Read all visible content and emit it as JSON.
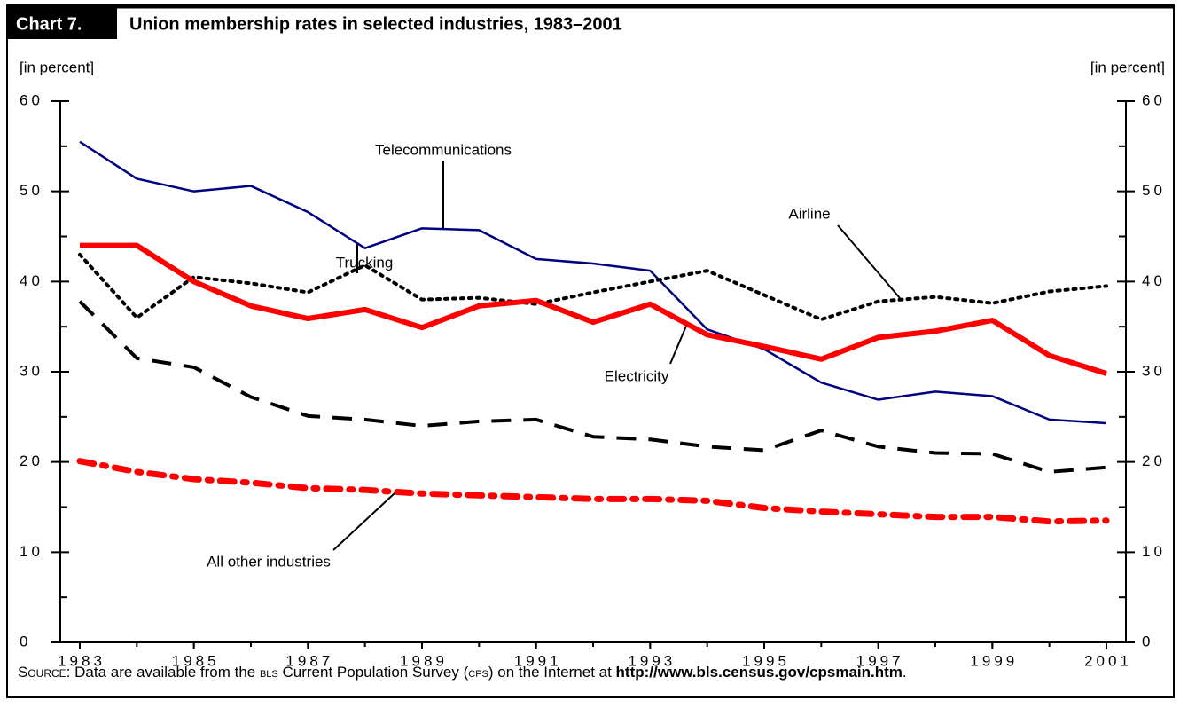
{
  "chart_data": {
    "type": "line",
    "badge": "Chart 7.",
    "title": "Union membership rates in selected industries, 1983–2001",
    "y_label": "[in percent]",
    "y2_label": "[in percent]",
    "x": [
      1983,
      1984,
      1985,
      1986,
      1987,
      1988,
      1989,
      1990,
      1991,
      1992,
      1993,
      1994,
      1995,
      1996,
      1997,
      1998,
      1999,
      2000,
      2001
    ],
    "xlim": [
      1983,
      2001
    ],
    "xticks": [
      1983,
      1985,
      1987,
      1989,
      1991,
      1993,
      1995,
      1997,
      1999,
      2001
    ],
    "ylim": [
      0,
      60
    ],
    "yticks": [
      0,
      10,
      20,
      30,
      40,
      50,
      60
    ],
    "y2lim": [
      0,
      60
    ],
    "y2ticks": [
      0,
      10,
      20,
      30,
      40,
      50,
      60
    ],
    "series": [
      {
        "name": "Telecommunications",
        "color": "#000080",
        "style": "solid",
        "width": 2.5,
        "values": [
          55.5,
          51.4,
          50.0,
          50.6,
          47.7,
          43.7,
          45.9,
          45.7,
          42.5,
          42.0,
          41.2,
          34.7,
          32.5,
          28.8,
          26.9,
          27.8,
          27.3,
          24.7,
          24.3
        ]
      },
      {
        "name": "Airline",
        "color": "#000000",
        "style": "dotted",
        "width": 4,
        "values": [
          43.0,
          36.0,
          40.5,
          39.8,
          38.8,
          41.8,
          38.0,
          38.2,
          37.5,
          38.8,
          40.0,
          41.2,
          38.5,
          35.8,
          37.8,
          38.3,
          37.6,
          38.9,
          39.5
        ]
      },
      {
        "name": "Electricity",
        "color": "#ff0000",
        "style": "solid",
        "width": 6,
        "values": [
          44.0,
          44.0,
          40.0,
          37.3,
          35.9,
          36.9,
          34.9,
          37.3,
          37.9,
          35.5,
          37.5,
          34.1,
          32.8,
          31.4,
          33.8,
          34.5,
          35.7,
          31.8,
          29.8
        ]
      },
      {
        "name": "Trucking",
        "color": "#000000",
        "style": "dashed",
        "width": 4,
        "values": [
          37.8,
          31.5,
          30.5,
          27.2,
          25.1,
          24.7,
          24.0,
          24.5,
          24.7,
          22.8,
          22.5,
          21.7,
          21.3,
          23.5,
          21.7,
          21.0,
          20.9,
          18.9,
          19.4
        ]
      },
      {
        "name": "All other industries",
        "color": "#ff0000",
        "style": "dashdot",
        "width": 7,
        "values": [
          20.1,
          18.9,
          18.1,
          17.7,
          17.1,
          16.9,
          16.5,
          16.3,
          16.1,
          15.9,
          15.9,
          15.7,
          14.9,
          14.5,
          14.2,
          13.9,
          13.9,
          13.4,
          13.5
        ]
      }
    ],
    "source": [
      "Source",
      ":  Data are available from the ",
      "BLS",
      " Current Population Survey (",
      "CPS",
      ") on the Internet at ",
      "http://www.bls.census.gov/cpsmain.htm",
      "."
    ]
  }
}
